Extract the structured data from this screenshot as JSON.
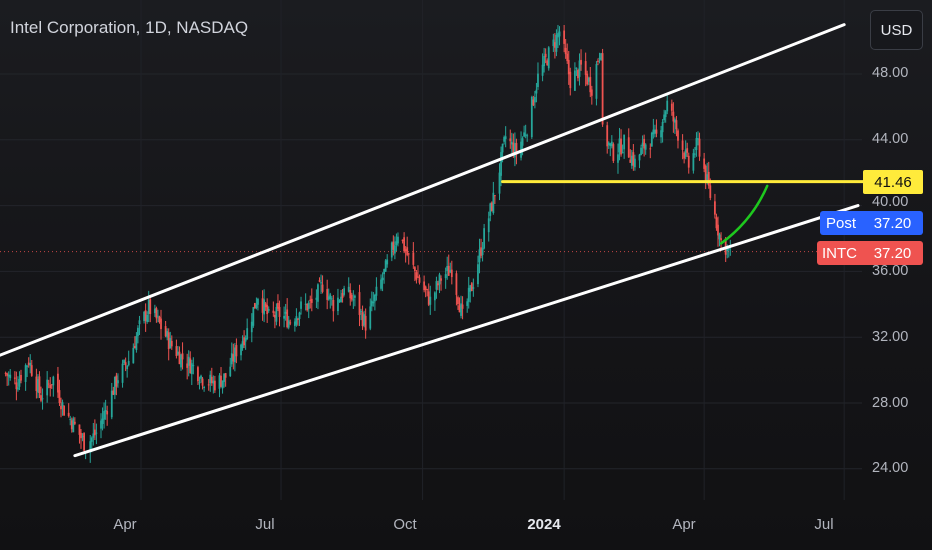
{
  "header": {
    "title": "Intel Corporation, 1D, NASDAQ"
  },
  "currency_button": {
    "label": "USD"
  },
  "y_axis": {
    "ticks": [
      "48.00",
      "44.00",
      "40.00",
      "36.00",
      "32.00",
      "28.00",
      "24.00"
    ]
  },
  "x_axis": {
    "ticks": [
      "Apr",
      "Jul",
      "Oct",
      "2024",
      "Apr",
      "Jul"
    ]
  },
  "badges": {
    "level": "41.46",
    "post_label": "Post",
    "post_value": "37.20",
    "ticker_label": "INTC",
    "ticker_value": "37.20"
  },
  "colors": {
    "up": "#26a69a",
    "down": "#ef5350",
    "support_line": "#ffeb3b",
    "projection": "#1ec81e",
    "channel": "#ffffff",
    "post": "#2962ff"
  },
  "chart_data": {
    "type": "candlestick",
    "symbol": "INTC",
    "interval": "1D",
    "exchange": "NASDAQ",
    "currency": "USD",
    "ylim": [
      22.4,
      51.8
    ],
    "price_line": 37.2,
    "price_path": [
      [
        "2023-01-03",
        29.8
      ],
      [
        "2023-01-10",
        29.2
      ],
      [
        "2023-01-18",
        30.6
      ],
      [
        "2023-01-26",
        28.4
      ],
      [
        "2023-02-03",
        29.5
      ],
      [
        "2023-02-10",
        27.6
      ],
      [
        "2023-02-17",
        26.6
      ],
      [
        "2023-02-24",
        25.4
      ],
      [
        "2023-03-03",
        26.2
      ],
      [
        "2023-03-10",
        27.8
      ],
      [
        "2023-03-17",
        29.6
      ],
      [
        "2023-03-24",
        30.6
      ],
      [
        "2023-03-31",
        32.6
      ],
      [
        "2023-04-06",
        33.8
      ],
      [
        "2023-04-13",
        32.8
      ],
      [
        "2023-04-20",
        31.6
      ],
      [
        "2023-04-27",
        30.8
      ],
      [
        "2023-05-05",
        30.2
      ],
      [
        "2023-05-12",
        29.4
      ],
      [
        "2023-05-19",
        29.2
      ],
      [
        "2023-05-26",
        29.6
      ],
      [
        "2023-06-02",
        31.2
      ],
      [
        "2023-06-09",
        32.4
      ],
      [
        "2023-06-16",
        34.6
      ],
      [
        "2023-06-23",
        33.2
      ],
      [
        "2023-06-30",
        33.4
      ],
      [
        "2023-07-07",
        33.0
      ],
      [
        "2023-07-14",
        33.8
      ],
      [
        "2023-07-21",
        34.0
      ],
      [
        "2023-07-28",
        35.2
      ],
      [
        "2023-08-04",
        34.0
      ],
      [
        "2023-08-11",
        34.8
      ],
      [
        "2023-08-18",
        34.2
      ],
      [
        "2023-08-25",
        32.8
      ],
      [
        "2023-09-01",
        34.6
      ],
      [
        "2023-09-08",
        36.4
      ],
      [
        "2023-09-15",
        38.4
      ],
      [
        "2023-09-22",
        36.8
      ],
      [
        "2023-09-29",
        35.4
      ],
      [
        "2023-10-06",
        34.2
      ],
      [
        "2023-10-13",
        35.6
      ],
      [
        "2023-10-20",
        36.2
      ],
      [
        "2023-10-27",
        33.2
      ],
      [
        "2023-11-03",
        35.4
      ],
      [
        "2023-11-10",
        38.2
      ],
      [
        "2023-11-17",
        40.8
      ],
      [
        "2023-11-24",
        44.2
      ],
      [
        "2023-12-01",
        43.2
      ],
      [
        "2023-12-08",
        44.8
      ],
      [
        "2023-12-15",
        47.8
      ],
      [
        "2023-12-22",
        49.2
      ],
      [
        "2023-12-29",
        50.6
      ],
      [
        "2024-01-05",
        47.6
      ],
      [
        "2024-01-12",
        48.4
      ],
      [
        "2024-01-19",
        47.2
      ],
      [
        "2024-01-25",
        49.8
      ],
      [
        "2024-01-26",
        44.4
      ],
      [
        "2024-02-02",
        43.2
      ],
      [
        "2024-02-09",
        43.8
      ],
      [
        "2024-02-16",
        42.6
      ],
      [
        "2024-02-23",
        43.8
      ],
      [
        "2024-03-01",
        44.2
      ],
      [
        "2024-03-08",
        46.2
      ],
      [
        "2024-03-15",
        44.4
      ],
      [
        "2024-03-22",
        42.4
      ],
      [
        "2024-03-28",
        43.8
      ],
      [
        "2024-04-05",
        40.6
      ],
      [
        "2024-04-12",
        37.8
      ],
      [
        "2024-04-18",
        37.2
      ]
    ],
    "drawings": {
      "channel_upper": [
        [
          "2022-12-22",
          30.6
        ],
        [
          "2024-07-01",
          51.0
        ]
      ],
      "channel_lower": [
        [
          "2023-02-17",
          24.8
        ],
        [
          "2024-07-10",
          40.0
        ]
      ],
      "support_level": [
        [
          "2023-11-22",
          41.46
        ],
        [
          "2024-07-15",
          41.46
        ]
      ],
      "projection_curve": [
        [
          "2024-04-12",
          37.7
        ],
        [
          "2024-05-12",
          41.2
        ]
      ]
    }
  }
}
